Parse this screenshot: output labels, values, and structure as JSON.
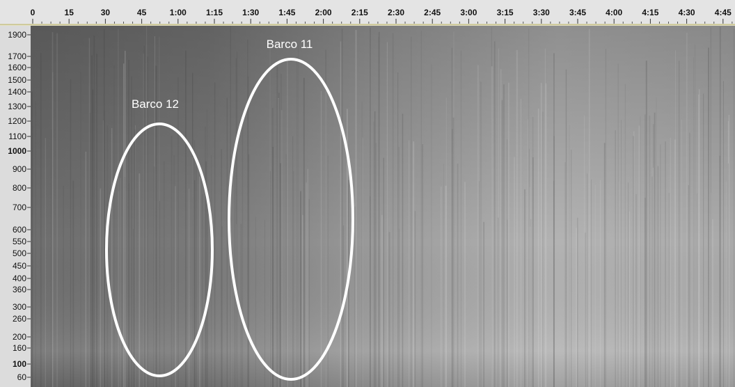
{
  "timeline": {
    "labels": [
      "0",
      "15",
      "30",
      "45",
      "1:00",
      "1:15",
      "1:30",
      "1:45",
      "2:00",
      "2:15",
      "2:30",
      "2:45",
      "3:00",
      "3:15",
      "3:30",
      "3:45",
      "4:00",
      "4:15",
      "4:30",
      "4:45"
    ]
  },
  "frequency_axis": {
    "labels": [
      "1900",
      "1700",
      "1600",
      "1500",
      "1400",
      "1300",
      "1200",
      "1100",
      "1000",
      "900",
      "800",
      "700",
      "600",
      "550",
      "500",
      "450",
      "400",
      "360",
      "300",
      "260",
      "200",
      "160",
      "100",
      "60"
    ]
  },
  "annotations": [
    {
      "label": "Barco 12"
    },
    {
      "label": "Barco 11"
    }
  ]
}
